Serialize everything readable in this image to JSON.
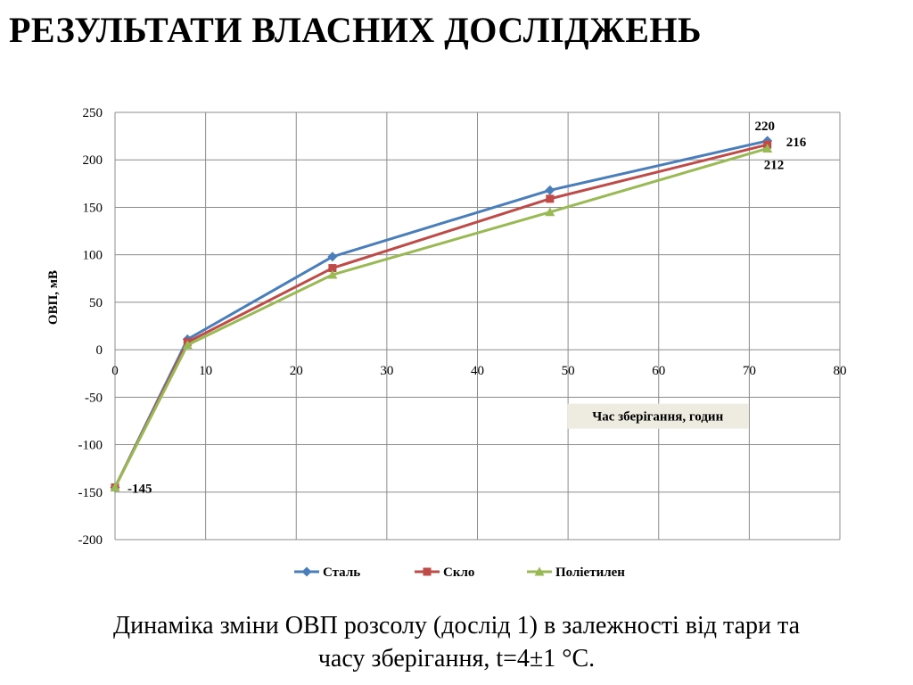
{
  "slide": {
    "title": "РЕЗУЛЬТАТИ  ВЛАСНИХ ДОСЛІДЖЕНЬ",
    "caption_line1": "Динаміка зміни ОВП розсолу (дослід 1) в залежності від тари та",
    "caption_line2": "часу зберігання, t=4±1 °С."
  },
  "chart_data": {
    "type": "line",
    "title": "",
    "xlabel": "Час зберігання, годин",
    "ylabel": "ОВП, мВ",
    "xlim": [
      0,
      80
    ],
    "ylim": [
      -200,
      250
    ],
    "xticks": [
      0,
      10,
      20,
      30,
      40,
      50,
      60,
      70,
      80
    ],
    "yticks": [
      -200,
      -150,
      -100,
      -50,
      0,
      50,
      100,
      150,
      200,
      250
    ],
    "grid": true,
    "legend_position": "bottom",
    "series": [
      {
        "name": "Сталь",
        "color": "#4a7ebb",
        "marker": "diamond",
        "x": [
          0,
          8,
          24,
          48,
          72
        ],
        "y": [
          -145,
          11,
          98,
          168,
          220
        ]
      },
      {
        "name": "Скло",
        "color": "#be4b48",
        "marker": "square",
        "x": [
          0,
          8,
          24,
          48,
          72
        ],
        "y": [
          -145,
          8,
          86,
          159,
          216
        ]
      },
      {
        "name": "Поліетилен",
        "color": "#98b954",
        "marker": "triangle",
        "x": [
          0,
          8,
          24,
          48,
          72
        ],
        "y": [
          -145,
          5,
          79,
          145,
          212
        ]
      }
    ],
    "annotations": [
      {
        "text": "220",
        "x": 72,
        "y": 220
      },
      {
        "text": "216",
        "x": 72,
        "y": 216
      },
      {
        "text": "212",
        "x": 72,
        "y": 212
      },
      {
        "text": "-145",
        "x": 0,
        "y": -145
      }
    ]
  }
}
